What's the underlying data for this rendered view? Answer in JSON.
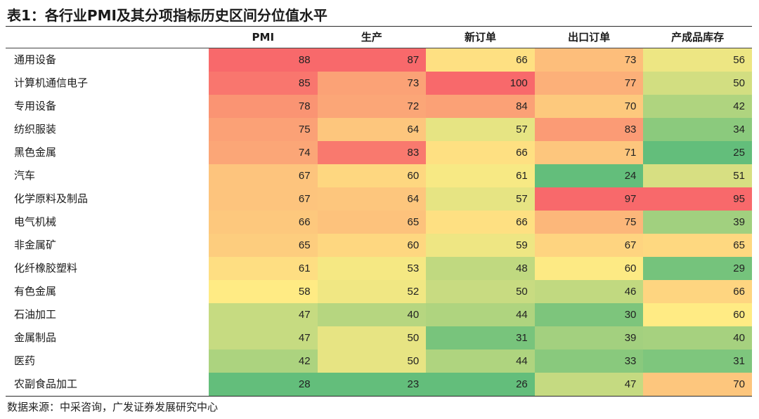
{
  "title": "表1：各行业PMI及其分项指标历史区间分位值水平",
  "source": "数据来源：中采咨询，广发证券发展研究中心",
  "chart_data": {
    "type": "table",
    "columns": [
      "PMI",
      "生产",
      "新订单",
      "出口订单",
      "产成品库存"
    ],
    "rows": [
      {
        "label": "通用设备",
        "values": [
          88,
          87,
          66,
          73,
          56
        ]
      },
      {
        "label": "计算机通信电子",
        "values": [
          85,
          73,
          100,
          77,
          50
        ]
      },
      {
        "label": "专用设备",
        "values": [
          78,
          72,
          84,
          70,
          42
        ]
      },
      {
        "label": "纺织服装",
        "values": [
          75,
          64,
          57,
          83,
          34
        ]
      },
      {
        "label": "黑色金属",
        "values": [
          74,
          83,
          66,
          71,
          25
        ]
      },
      {
        "label": "汽车",
        "values": [
          67,
          60,
          61,
          24,
          51
        ]
      },
      {
        "label": "化学原料及制品",
        "values": [
          67,
          64,
          57,
          97,
          95
        ]
      },
      {
        "label": "电气机械",
        "values": [
          66,
          65,
          66,
          75,
          39
        ]
      },
      {
        "label": "非金属矿",
        "values": [
          65,
          60,
          59,
          67,
          65
        ]
      },
      {
        "label": "化纤橡胶塑料",
        "values": [
          61,
          53,
          48,
          60,
          29
        ]
      },
      {
        "label": "有色金属",
        "values": [
          58,
          52,
          50,
          46,
          66
        ]
      },
      {
        "label": "石油加工",
        "values": [
          47,
          40,
          44,
          30,
          60
        ]
      },
      {
        "label": "金属制品",
        "values": [
          47,
          50,
          31,
          39,
          40
        ]
      },
      {
        "label": "医药",
        "values": [
          42,
          50,
          44,
          33,
          31
        ]
      },
      {
        "label": "农副食品加工",
        "values": [
          28,
          23,
          26,
          47,
          70
        ]
      }
    ],
    "color_scale": {
      "low": "#63be7b",
      "mid": "#ffeb84",
      "high": "#f8696b"
    }
  }
}
